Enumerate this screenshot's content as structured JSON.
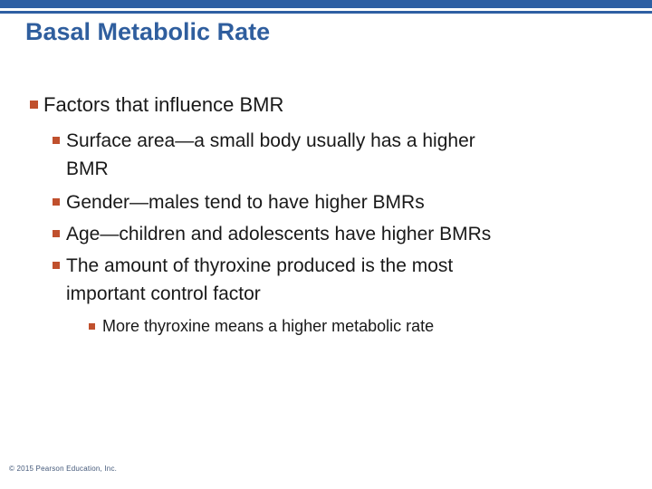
{
  "slide": {
    "title": "Basal Metabolic Rate",
    "footer": "© 2015 Pearson Education, Inc.",
    "colors": {
      "accent_bar_blue": "#2E5FA3",
      "title_blue": "#2F5E9E",
      "bullet_orange": "#C0502D",
      "body_text": "#191919",
      "footer_text": "#44597A",
      "background": "#FFFFFF"
    },
    "bullets": [
      {
        "level": 1,
        "lines": [
          "Factors that influence BMR"
        ]
      },
      {
        "level": 2,
        "lines": [
          "Surface area—a small body usually has a higher",
          "BMR"
        ]
      },
      {
        "level": 2,
        "lines": [
          "Gender—males tend to have higher BMRs"
        ]
      },
      {
        "level": 2,
        "lines": [
          "Age—children and adolescents have higher BMRs"
        ]
      },
      {
        "level": 2,
        "lines": [
          "The amount of thyroxine produced is the most",
          "important control factor"
        ]
      },
      {
        "level": 3,
        "lines": [
          "More thyroxine means a higher metabolic rate"
        ]
      }
    ]
  }
}
